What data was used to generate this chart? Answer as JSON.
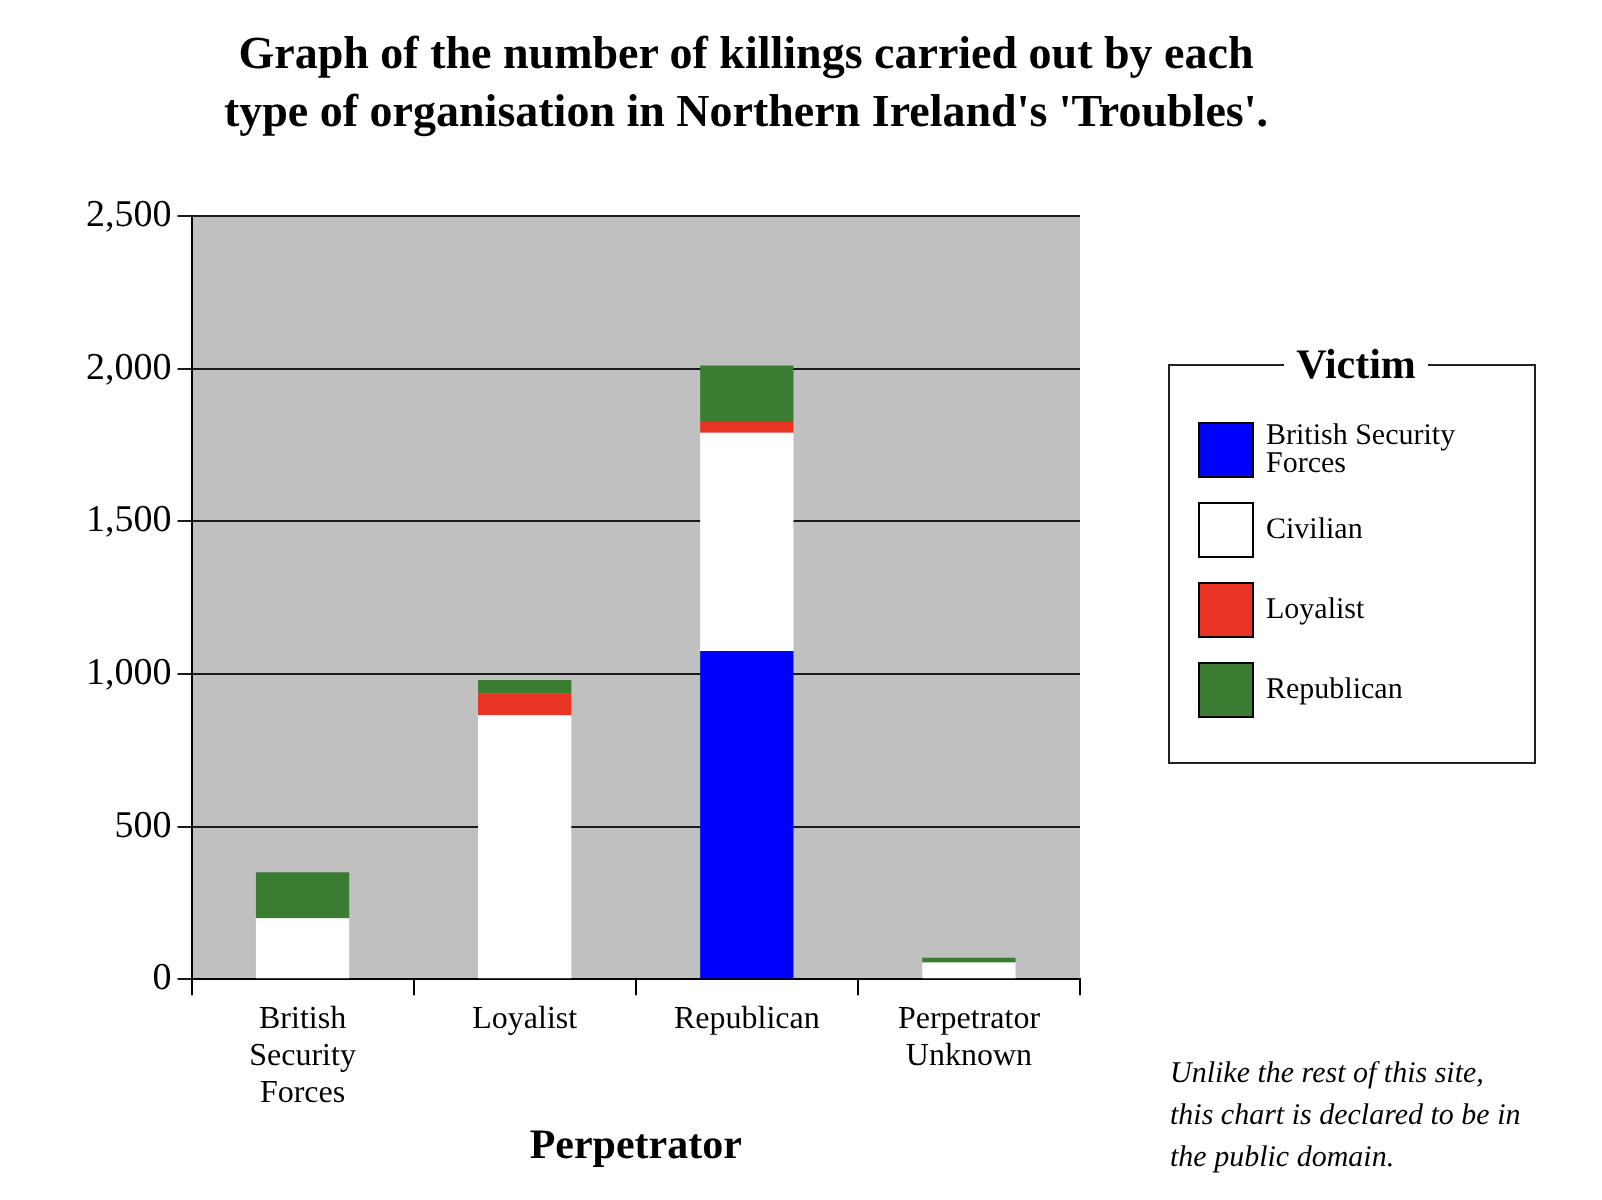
{
  "chart_data": {
    "type": "bar",
    "title": "Graph of the number of killings carried out by each type of organisation in Northern Ireland's 'Troubles'.",
    "xlabel": "Perpetrator",
    "legend_title": "Victim",
    "categories": [
      "British Security Forces",
      "Loyalist",
      "Republican",
      "Perpetrator Unknown"
    ],
    "stacked": true,
    "series": [
      {
        "name": "British Security Forces",
        "color": "#0000ff",
        "values": [
          0,
          0,
          1075,
          0
        ]
      },
      {
        "name": "Civilian",
        "color": "#ffffff",
        "values": [
          200,
          865,
          715,
          55
        ]
      },
      {
        "name": "Loyalist",
        "color": "#e93323",
        "values": [
          0,
          70,
          35,
          0
        ]
      },
      {
        "name": "Republican",
        "color": "#3a7d32",
        "values": [
          150,
          45,
          185,
          15
        ]
      }
    ],
    "ylim": [
      0,
      2500
    ],
    "yticks": [
      0,
      500,
      {
        "value": 1000,
        "label": "1,000"
      },
      {
        "value": 1500,
        "label": "1,500"
      },
      {
        "value": 2000,
        "label": "2,000"
      },
      {
        "value": 2500,
        "label": "2,500"
      }
    ],
    "grid": "y",
    "legend": "right",
    "annotations": [
      "Unlike the rest of this site, this chart is declared to be in the public domain."
    ]
  }
}
